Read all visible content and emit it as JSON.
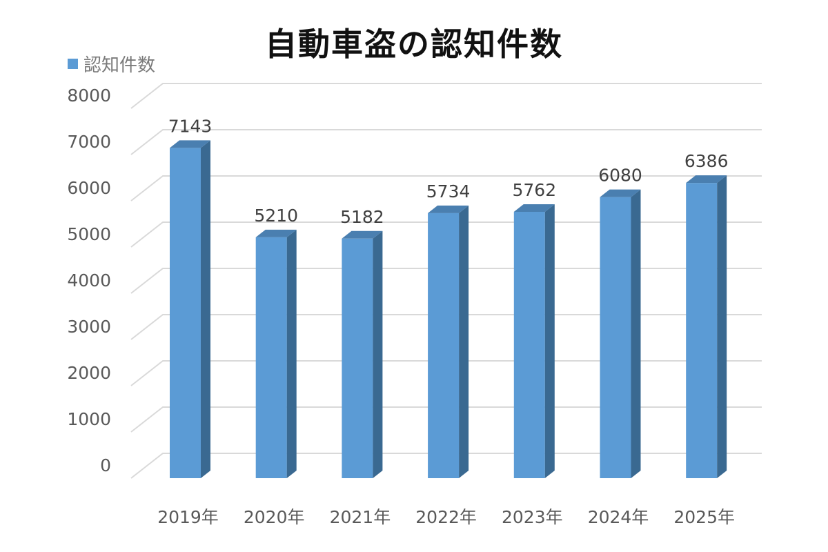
{
  "chart_data": {
    "type": "bar",
    "style": "3d-column",
    "title": "自動車盗の認知件数",
    "xlabel": "",
    "ylabel": "",
    "categories": [
      "2019年",
      "2020年",
      "2021年",
      "2022年",
      "2023年",
      "2024年",
      "2025年"
    ],
    "series": [
      {
        "name": "認知件数",
        "values": [
          7143,
          5210,
          5182,
          5734,
          5762,
          6080,
          6386
        ],
        "color": "#5b9bd5",
        "side_color": "#3a6991",
        "top_color": "#4a7fb0"
      }
    ],
    "ylim": [
      0,
      8000
    ],
    "yticks": [
      0,
      1000,
      2000,
      3000,
      4000,
      5000,
      6000,
      7000,
      8000
    ],
    "grid": true,
    "grid_color": "#d9d9d9",
    "data_labels": true,
    "legend_position": "top-left"
  }
}
